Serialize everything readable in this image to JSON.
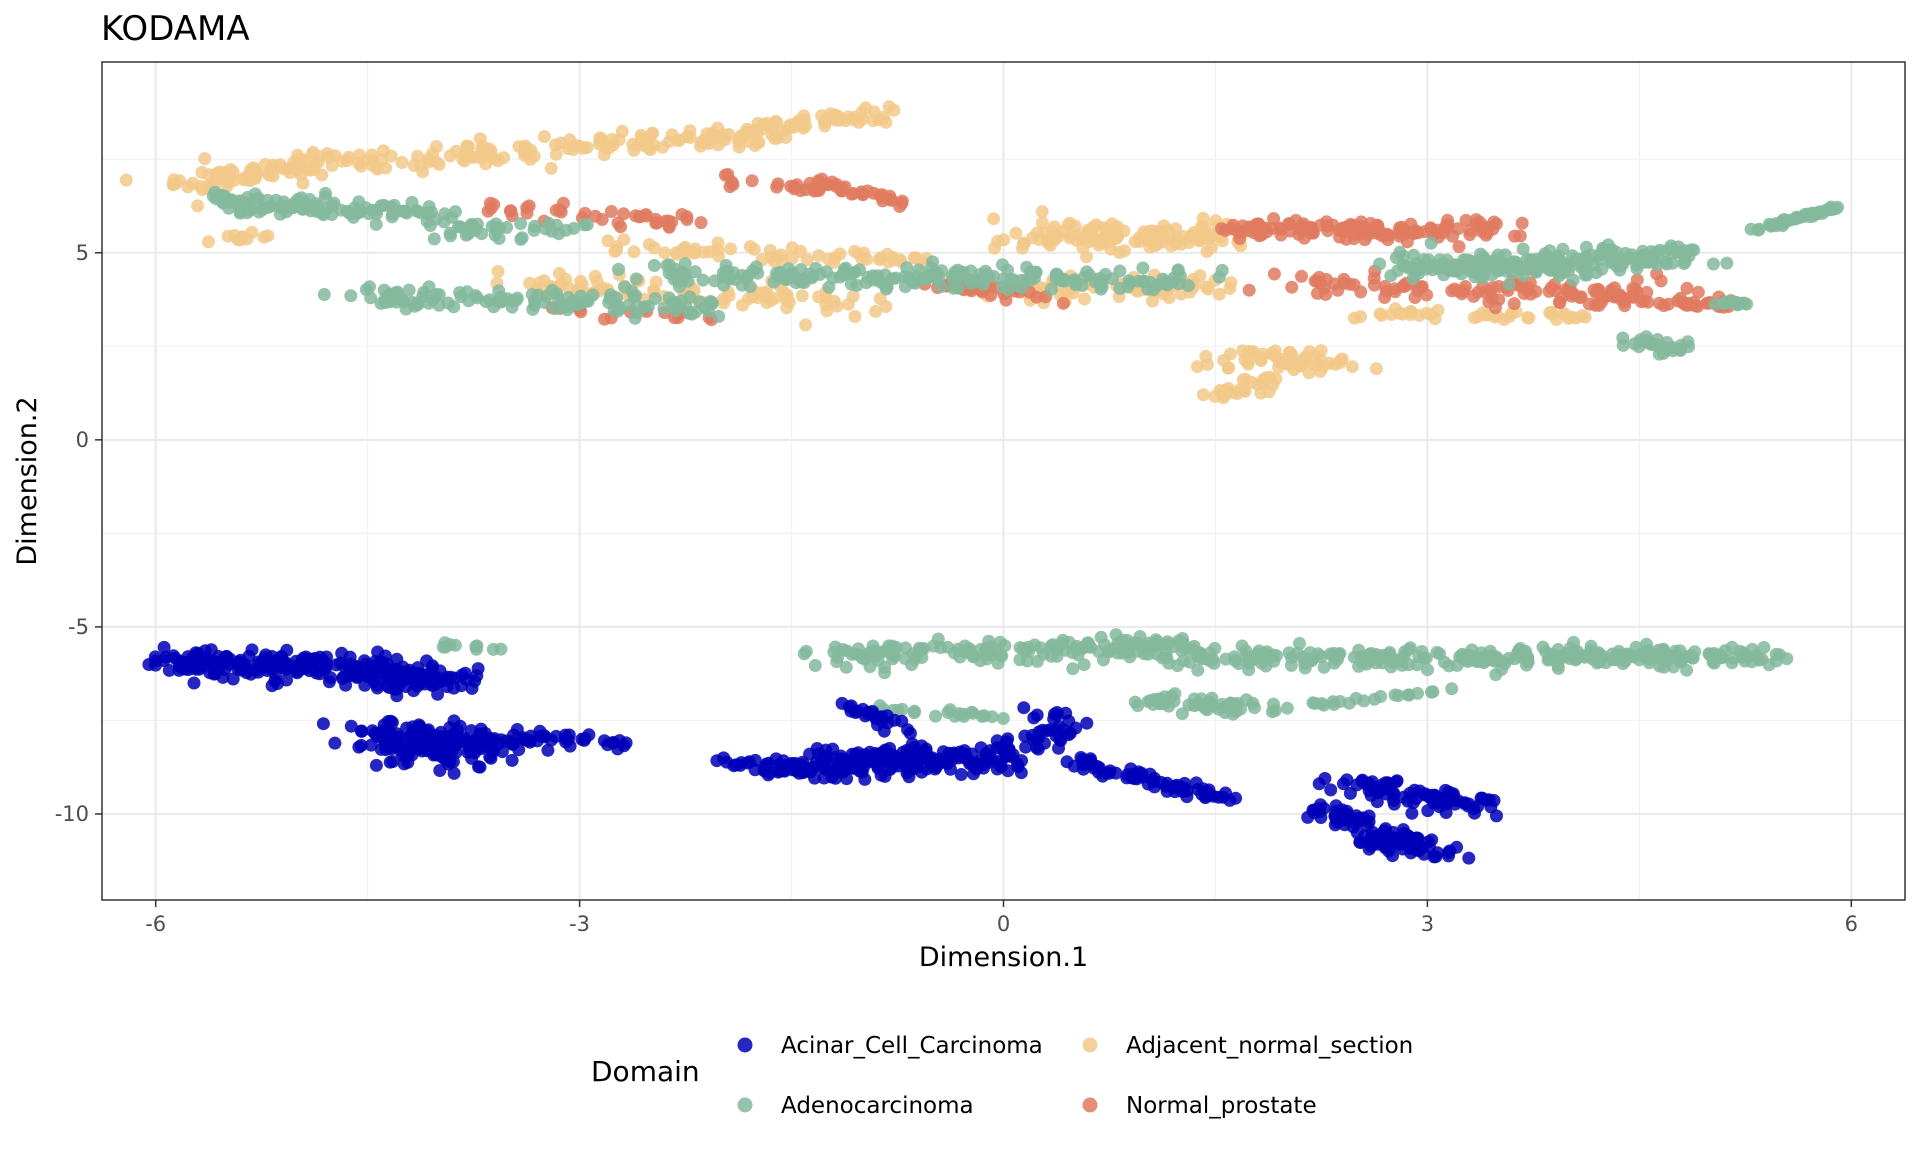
{
  "chart_data": {
    "type": "scatter",
    "title": "KODAMA",
    "xlabel": "Dimension.1",
    "ylabel": "Dimension.2",
    "xlim": [
      -6.38,
      6.38
    ],
    "ylim": [
      -12.3,
      10.1
    ],
    "xticks": [
      -6,
      -3,
      0,
      3,
      6
    ],
    "yticks": [
      -10,
      -5,
      0,
      5
    ],
    "grid": true,
    "legend": {
      "title": "Domain",
      "position": "bottom",
      "entries": [
        {
          "name": "Acinar_Cell_Carcinoma",
          "color": "#0000B8"
        },
        {
          "name": "Adjacent_normal_section",
          "color": "#F2C98A"
        },
        {
          "name": "Adenocarcinoma",
          "color": "#84B89C"
        },
        {
          "name": "Normal_prostate",
          "color": "#E07A5F"
        }
      ]
    },
    "series": [
      {
        "name": "Adjacent_normal_section",
        "color": "#F2C98A",
        "clusters": [
          {
            "from": [
              -5.8,
              6.8
            ],
            "to": [
              -4.5,
              7.6
            ],
            "spread": 0.35,
            "n": 90
          },
          {
            "from": [
              -4.5,
              7.4
            ],
            "to": [
              -2.0,
              8.1
            ],
            "spread": 0.3,
            "n": 110
          },
          {
            "from": [
              -2.0,
              8.0
            ],
            "to": [
              -0.9,
              8.8
            ],
            "spread": 0.25,
            "n": 70
          },
          {
            "from": [
              -3.5,
              4.2
            ],
            "to": [
              -1.0,
              3.6
            ],
            "spread": 0.35,
            "n": 90
          },
          {
            "from": [
              -3.0,
              5.2
            ],
            "to": [
              -0.5,
              4.8
            ],
            "spread": 0.3,
            "n": 60
          },
          {
            "from": [
              0.3,
              5.5
            ],
            "to": [
              1.5,
              5.4
            ],
            "spread": 0.45,
            "n": 140
          },
          {
            "from": [
              0.0,
              4.0
            ],
            "to": [
              1.6,
              4.1
            ],
            "spread": 0.35,
            "n": 70
          },
          {
            "from": [
              1.6,
              2.2
            ],
            "to": [
              2.4,
              2.0
            ],
            "spread": 0.3,
            "n": 60
          },
          {
            "from": [
              1.5,
              1.2
            ],
            "to": [
              1.9,
              1.6
            ],
            "spread": 0.2,
            "n": 25
          },
          {
            "from": [
              2.6,
              3.4
            ],
            "to": [
              4.2,
              3.3
            ],
            "spread": 0.2,
            "n": 40
          },
          {
            "from": [
              -5.6,
              5.4
            ],
            "to": [
              -5.2,
              5.4
            ],
            "spread": 0.15,
            "n": 12
          }
        ]
      },
      {
        "name": "Normal_prostate",
        "color": "#E07A5F",
        "clusters": [
          {
            "from": [
              -3.6,
              6.2
            ],
            "to": [
              -2.2,
              5.8
            ],
            "spread": 0.25,
            "n": 40
          },
          {
            "from": [
              -2.0,
              7.0
            ],
            "to": [
              -1.3,
              6.7
            ],
            "spread": 0.2,
            "n": 18
          },
          {
            "from": [
              -1.4,
              7.0
            ],
            "to": [
              -0.7,
              6.3
            ],
            "spread": 0.12,
            "n": 30
          },
          {
            "from": [
              -0.5,
              4.2
            ],
            "to": [
              0.4,
              3.8
            ],
            "spread": 0.2,
            "n": 35
          },
          {
            "from": [
              1.6,
              5.6
            ],
            "to": [
              3.5,
              5.6
            ],
            "spread": 0.3,
            "n": 140
          },
          {
            "from": [
              2.0,
              4.2
            ],
            "to": [
              4.8,
              3.8
            ],
            "spread": 0.35,
            "n": 120
          },
          {
            "from": [
              4.5,
              3.7
            ],
            "to": [
              5.2,
              3.6
            ],
            "spread": 0.1,
            "n": 25
          },
          {
            "from": [
              -3.2,
              3.5
            ],
            "to": [
              -2.0,
              3.4
            ],
            "spread": 0.2,
            "n": 20
          }
        ]
      },
      {
        "name": "Adenocarcinoma",
        "color": "#84B89C",
        "clusters": [
          {
            "from": [
              -5.6,
              6.4
            ],
            "to": [
              -4.0,
              6.0
            ],
            "spread": 0.3,
            "n": 110
          },
          {
            "from": [
              -4.0,
              5.6
            ],
            "to": [
              -3.0,
              5.6
            ],
            "spread": 0.3,
            "n": 35
          },
          {
            "from": [
              -4.6,
              3.8
            ],
            "to": [
              -2.0,
              3.6
            ],
            "spread": 0.3,
            "n": 120
          },
          {
            "from": [
              -2.5,
              4.4
            ],
            "to": [
              1.3,
              4.3
            ],
            "spread": 0.35,
            "n": 200
          },
          {
            "from": [
              2.8,
              4.6
            ],
            "to": [
              4.8,
              4.9
            ],
            "spread": 0.4,
            "n": 220
          },
          {
            "from": [
              4.5,
              2.6
            ],
            "to": [
              4.8,
              2.4
            ],
            "spread": 0.2,
            "n": 30
          },
          {
            "from": [
              5.3,
              5.6
            ],
            "to": [
              5.9,
              6.2
            ],
            "spread": 0.05,
            "n": 40
          },
          {
            "from": [
              5.0,
              3.7
            ],
            "to": [
              5.3,
              3.6
            ],
            "spread": 0.05,
            "n": 15
          },
          {
            "from": [
              -1.4,
              -5.8
            ],
            "to": [
              1.3,
              -5.5
            ],
            "spread": 0.35,
            "n": 160
          },
          {
            "from": [
              1.0,
              -7.0
            ],
            "to": [
              1.9,
              -7.2
            ],
            "spread": 0.25,
            "n": 50
          },
          {
            "from": [
              1.3,
              -5.8
            ],
            "to": [
              3.5,
              -5.9
            ],
            "spread": 0.3,
            "n": 130
          },
          {
            "from": [
              3.3,
              -5.8
            ],
            "to": [
              5.4,
              -5.8
            ],
            "spread": 0.3,
            "n": 150
          },
          {
            "from": [
              2.2,
              -7.1
            ],
            "to": [
              3.3,
              -6.6
            ],
            "spread": 0.1,
            "n": 20
          },
          {
            "from": [
              -4.0,
              -5.5
            ],
            "to": [
              -3.6,
              -5.6
            ],
            "spread": 0.12,
            "n": 10
          },
          {
            "from": [
              -0.9,
              -7.2
            ],
            "to": [
              0.0,
              -7.4
            ],
            "spread": 0.15,
            "n": 20
          }
        ]
      },
      {
        "name": "Acinar_Cell_Carcinoma",
        "color": "#0000B8",
        "clusters": [
          {
            "from": [
              -5.9,
              -5.9
            ],
            "to": [
              -4.5,
              -6.2
            ],
            "spread": 0.35,
            "n": 160
          },
          {
            "from": [
              -4.5,
              -6.0
            ],
            "to": [
              -4.0,
              -6.5
            ],
            "spread": 0.4,
            "n": 110
          },
          {
            "from": [
              -4.4,
              -7.8
            ],
            "to": [
              -3.8,
              -8.4
            ],
            "spread": 0.5,
            "n": 160
          },
          {
            "from": [
              -3.8,
              -8.0
            ],
            "to": [
              -2.9,
              -8.0
            ],
            "spread": 0.25,
            "n": 50
          },
          {
            "from": [
              -2.0,
              -8.6
            ],
            "to": [
              -1.0,
              -9.0
            ],
            "spread": 0.25,
            "n": 60
          },
          {
            "from": [
              -1.1,
              -8.5
            ],
            "to": [
              -0.2,
              -8.6
            ],
            "spread": 0.45,
            "n": 160
          },
          {
            "from": [
              -0.2,
              -8.6
            ],
            "to": [
              0.4,
              -7.8
            ],
            "spread": 0.25,
            "n": 40
          },
          {
            "from": [
              -1.2,
              -7.0
            ],
            "to": [
              -0.6,
              -7.8
            ],
            "spread": 0.2,
            "n": 25
          },
          {
            "from": [
              0.5,
              -8.6
            ],
            "to": [
              1.6,
              -9.6
            ],
            "spread": 0.18,
            "n": 70
          },
          {
            "from": [
              2.2,
              -9.8
            ],
            "to": [
              2.5,
              -10.2
            ],
            "spread": 0.2,
            "n": 35
          },
          {
            "from": [
              2.5,
              -9.2
            ],
            "to": [
              3.4,
              -9.8
            ],
            "spread": 0.3,
            "n": 90
          },
          {
            "from": [
              2.6,
              -10.5
            ],
            "to": [
              3.1,
              -11.1
            ],
            "spread": 0.25,
            "n": 80
          },
          {
            "from": [
              0.3,
              -7.2
            ],
            "to": [
              0.5,
              -7.8
            ],
            "spread": 0.2,
            "n": 15
          },
          {
            "from": [
              -2.8,
              -8.1
            ],
            "to": [
              -2.6,
              -8.3
            ],
            "spread": 0.12,
            "n": 6
          }
        ]
      }
    ]
  }
}
